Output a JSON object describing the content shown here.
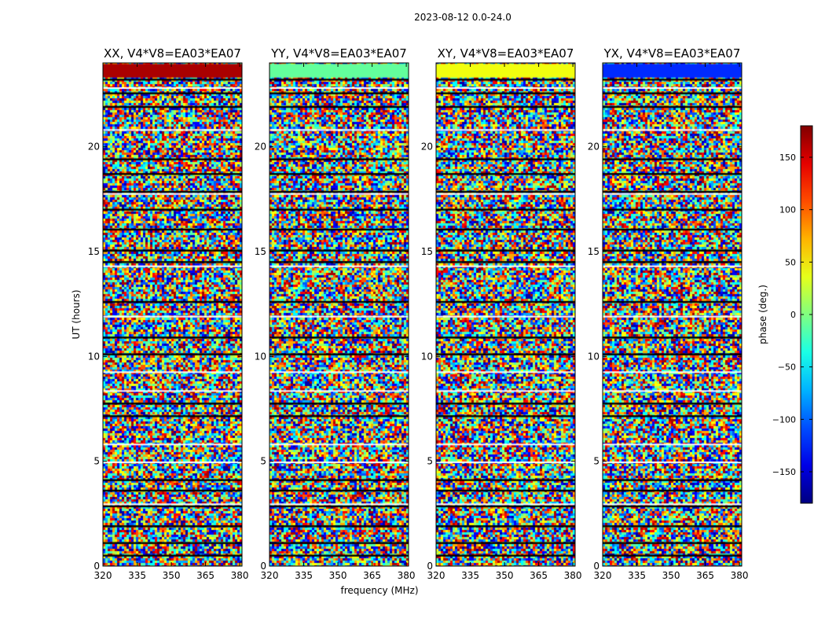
{
  "figure": {
    "suptitle": "2023-08-12 0.0-24.0",
    "xlabel": "frequency (MHz)",
    "ylabel": "UT (hours)"
  },
  "chart_data": {
    "type": "heatmap",
    "suptitle": "2023-08-12 0.0-24.0",
    "xlabel": "frequency (MHz)",
    "ylabel": "UT (hours)",
    "xlim": [
      320,
      381
    ],
    "ylim": [
      0,
      24
    ],
    "x_ticks": [
      320,
      335,
      350,
      365,
      380
    ],
    "y_ticks": [
      0,
      5,
      10,
      15,
      20
    ],
    "panels": [
      {
        "title": "XX, V4*V8=EA03*EA07",
        "top_band_phase": 165
      },
      {
        "title": "YY, V4*V8=EA03*EA07",
        "top_band_phase": -10
      },
      {
        "title": "XY, V4*V8=EA03*EA07",
        "top_band_phase": 40
      },
      {
        "title": "YX, V4*V8=EA03*EA07",
        "top_band_phase": -120
      }
    ],
    "flagged_rows_ut": [
      0.5,
      1.1,
      1.9,
      2.85,
      3.6,
      4.1,
      7.15,
      7.75,
      10.1,
      10.9,
      12.6,
      14.5,
      15.05,
      16.05,
      17.0,
      17.85,
      18.7,
      19.4,
      21.9,
      22.55,
      23.2
    ],
    "blank_rows_ut": [
      2.95,
      4.95,
      5.8,
      8.35,
      9.25,
      11.9,
      14.3,
      17.75,
      20.8,
      22.8
    ],
    "colorbar": {
      "label": "phase (deg.)",
      "range": [
        -180,
        180
      ],
      "ticks": [
        -150,
        -100,
        -50,
        0,
        50,
        100,
        150
      ],
      "tick_labels": [
        "−150",
        "−100",
        "−50",
        "0",
        "50",
        "100",
        "150"
      ],
      "colormap": "jet"
    }
  }
}
